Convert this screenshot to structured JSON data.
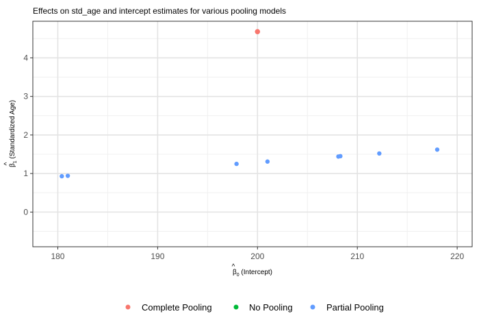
{
  "chart_data": {
    "type": "scatter",
    "title": "Effects on std_age and intercept estimates for various pooling models",
    "xlabel": {
      "symbol": "β",
      "hat": "^",
      "subscript": "0",
      "text": " (Intercept)"
    },
    "ylabel": {
      "symbol": "β",
      "hat": "^",
      "subscript": "1",
      "text": " (Standardized Age)"
    },
    "xlim": [
      177.5,
      221.5
    ],
    "ylim": [
      -0.9,
      4.95
    ],
    "x_major_ticks": [
      180,
      190,
      200,
      210,
      220
    ],
    "x_minor_ticks": [
      185,
      195,
      205,
      215
    ],
    "y_major_ticks": [
      0,
      1,
      2,
      3,
      4
    ],
    "y_minor_ticks": [
      -0.5,
      0.5,
      1.5,
      2.5,
      3.5,
      4.5
    ],
    "x_tick_labels": [
      "180",
      "190",
      "200",
      "210",
      "220"
    ],
    "y_tick_labels": [
      "0",
      "1",
      "2",
      "3",
      "4"
    ],
    "grid": true,
    "legend_position": "bottom",
    "series": [
      {
        "name": "Complete Pooling",
        "color": "#F8766D",
        "points": [
          {
            "x": 200.0,
            "y": 4.68
          }
        ]
      },
      {
        "name": "No Pooling",
        "color": "#00BA38",
        "points": []
      },
      {
        "name": "Partial Pooling",
        "color": "#619CFF",
        "points": [
          {
            "x": 180.4,
            "y": 0.93
          },
          {
            "x": 181.0,
            "y": 0.94
          },
          {
            "x": 197.9,
            "y": 1.25
          },
          {
            "x": 201.0,
            "y": 1.31
          },
          {
            "x": 208.1,
            "y": 1.44
          },
          {
            "x": 208.3,
            "y": 1.45
          },
          {
            "x": 212.2,
            "y": 1.52
          },
          {
            "x": 218.0,
            "y": 1.62
          }
        ]
      }
    ]
  }
}
